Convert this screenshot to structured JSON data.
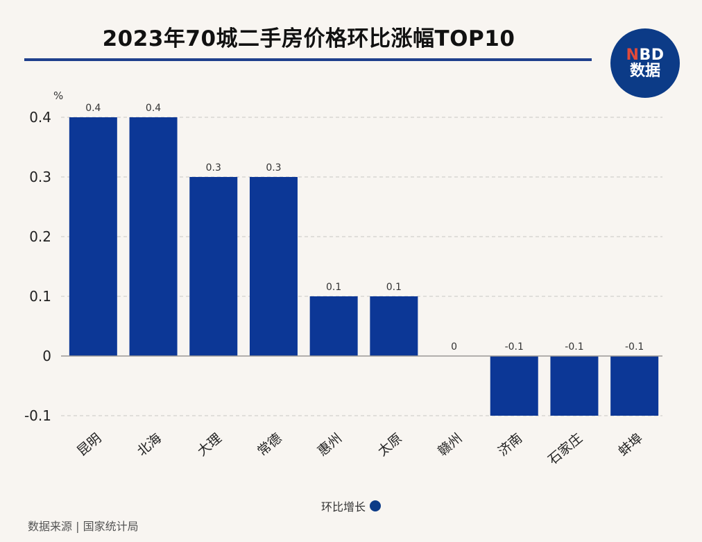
{
  "title": "2023年70城二手房价格环比涨幅TOP10",
  "logo": {
    "line1_n": "N",
    "line1_rest": "BD",
    "line2": "数据"
  },
  "legend_label": "环比增长",
  "source": "数据来源 | 国家统计局",
  "colors": {
    "bar": "#0c3796",
    "title_rule": "#1f3f8c",
    "logo_bg": "#0c3b87",
    "background": "#f8f5f1"
  },
  "chart_data": {
    "type": "bar",
    "categories": [
      "昆明",
      "北海",
      "大理",
      "常德",
      "惠州",
      "太原",
      "赣州",
      "济南",
      "石家庄",
      "蚌埠"
    ],
    "series": [
      {
        "name": "环比增长",
        "values": [
          0.4,
          0.4,
          0.3,
          0.3,
          0.1,
          0.1,
          0,
          -0.1,
          -0.1,
          -0.1
        ]
      }
    ],
    "data_labels": [
      "0.4",
      "0.4",
      "0.3",
      "0.3",
      "0.1",
      "0.1",
      "0",
      "-0.1",
      "-0.1",
      "-0.1"
    ],
    "y_unit": "%",
    "ylim": [
      -0.1,
      0.4
    ],
    "yticks": [
      "0.4",
      "0.3",
      "0.2",
      "0.1",
      "0",
      "-0.1"
    ],
    "ytick_values": [
      0.4,
      0.3,
      0.2,
      0.1,
      0,
      -0.1
    ],
    "grid": "horizontal dashed",
    "legend_position": "bottom"
  }
}
